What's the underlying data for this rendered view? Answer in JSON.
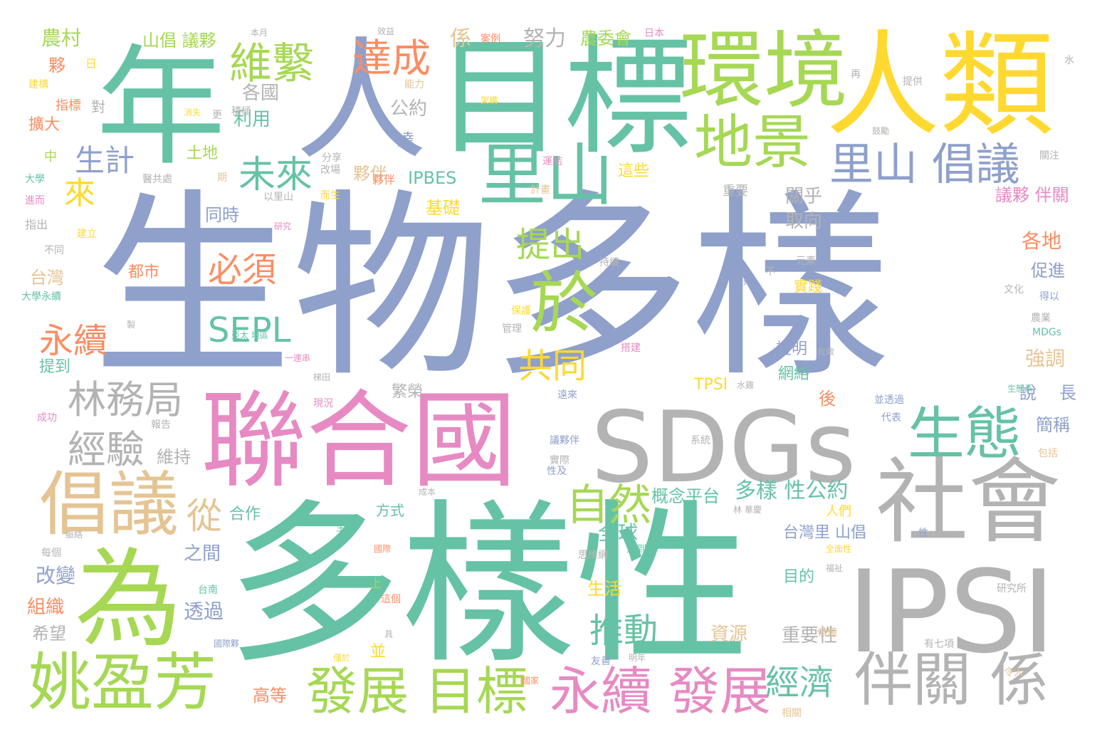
{
  "word_cloud": {
    "palette": {
      "blue": "#8fa0cb",
      "teal": "#66c2a5",
      "lime": "#a6d854",
      "yellow": "#ffd92f",
      "pink": "#e78ac3",
      "gray": "#b3b3b3",
      "orange": "#fc8d62",
      "tan": "#e5c494"
    },
    "words": [
      {
        "text": "生物多樣",
        "color": "#8fa0cb"
      },
      {
        "text": "多樣性",
        "color": "#66c2a5"
      },
      {
        "text": "目標",
        "color": "#66c2a5"
      },
      {
        "text": "人",
        "color": "#8fa0cb"
      },
      {
        "text": "年",
        "color": "#66c2a5"
      },
      {
        "text": "人類",
        "color": "#ffd92f"
      },
      {
        "text": "環境",
        "color": "#a6d854"
      },
      {
        "text": "聯合國",
        "color": "#e78ac3"
      },
      {
        "text": "SDGs",
        "color": "#b3b3b3"
      },
      {
        "text": "IPSI",
        "color": "#b3b3b3"
      },
      {
        "text": "社會",
        "color": "#b3b3b3"
      },
      {
        "text": "為",
        "color": "#a6d854"
      },
      {
        "text": "里山",
        "color": "#66c2a5"
      },
      {
        "text": "地景",
        "color": "#a6d854"
      },
      {
        "text": "里山 倡議",
        "color": "#8fa0cb"
      },
      {
        "text": "生態",
        "color": "#66c2a5"
      },
      {
        "text": "倡議",
        "color": "#e5c494"
      },
      {
        "text": "姚盈芳",
        "color": "#a6d854"
      },
      {
        "text": "伴關 係",
        "color": "#b3b3b3"
      },
      {
        "text": "發展 目標",
        "color": "#a6d854"
      },
      {
        "text": "永續 發展",
        "color": "#e78ac3"
      },
      {
        "text": "林務局",
        "color": "#b3b3b3"
      },
      {
        "text": "經驗",
        "color": "#b3b3b3"
      },
      {
        "text": "維繫",
        "color": "#a6d854"
      },
      {
        "text": "達成",
        "color": "#fc8d62"
      },
      {
        "text": "生計",
        "color": "#8fa0cb"
      },
      {
        "text": "未來",
        "color": "#66c2a5"
      },
      {
        "text": "來",
        "color": "#ffd92f"
      },
      {
        "text": "於",
        "color": "#a6d854"
      },
      {
        "text": "提出",
        "color": "#a6d854"
      },
      {
        "text": "必須",
        "color": "#fc8d62"
      },
      {
        "text": "SEPL",
        "color": "#66c2a5"
      },
      {
        "text": "永續",
        "color": "#fc8d62"
      },
      {
        "text": "共同",
        "color": "#ffd92f"
      },
      {
        "text": "推動",
        "color": "#66c2a5"
      },
      {
        "text": "自然",
        "color": "#a6d854"
      },
      {
        "text": "經濟",
        "color": "#66c2a5"
      },
      {
        "text": "從",
        "color": "#e5c494"
      },
      {
        "text": "努力",
        "color": "#b3b3b3"
      },
      {
        "text": "各國",
        "color": "#b3b3b3"
      },
      {
        "text": "利用",
        "color": "#66c2a5"
      },
      {
        "text": "公約",
        "color": "#b3b3b3"
      },
      {
        "text": "農村",
        "color": "#a6d854"
      },
      {
        "text": "山倡 議夥",
        "color": "#a6d854"
      },
      {
        "text": "係",
        "color": "#e5c494"
      },
      {
        "text": "農委會",
        "color": "#a6d854"
      },
      {
        "text": "IPBES",
        "color": "#66c2a5"
      },
      {
        "text": "夥伴",
        "color": "#e5c494"
      },
      {
        "text": "基礎",
        "color": "#ffd92f"
      },
      {
        "text": "關乎",
        "color": "#b3b3b3"
      },
      {
        "text": "取向",
        "color": "#b3b3b3"
      },
      {
        "text": "議夥 伴關",
        "color": "#e78ac3"
      },
      {
        "text": "各地",
        "color": "#fc8d62"
      },
      {
        "text": "促進",
        "color": "#8fa0cb"
      },
      {
        "text": "強調",
        "color": "#e5c494"
      },
      {
        "text": "說",
        "color": "#8fa0cb"
      },
      {
        "text": "長",
        "color": "#8fa0cb"
      },
      {
        "text": "簡稱",
        "color": "#8fa0cb"
      },
      {
        "text": "概念平台",
        "color": "#66c2a5"
      },
      {
        "text": "多樣 性公約",
        "color": "#66c2a5"
      },
      {
        "text": "台灣里 山倡",
        "color": "#8fa0cb"
      },
      {
        "text": "重要性",
        "color": "#b3b3b3"
      },
      {
        "text": "資源",
        "color": "#e5c494"
      },
      {
        "text": "高等",
        "color": "#fc8d62"
      },
      {
        "text": "全球",
        "color": "#66c2a5"
      },
      {
        "text": "生活",
        "color": "#ffd92f"
      },
      {
        "text": "合作",
        "color": "#66c2a5"
      },
      {
        "text": "方式",
        "color": "#66c2a5"
      },
      {
        "text": "之間",
        "color": "#8fa0cb"
      },
      {
        "text": "改變",
        "color": "#8fa0cb"
      },
      {
        "text": "組織",
        "color": "#fc8d62"
      },
      {
        "text": "透過",
        "color": "#8fa0cb"
      },
      {
        "text": "希望",
        "color": "#b3b3b3"
      },
      {
        "text": "台灣",
        "color": "#e5c494"
      },
      {
        "text": "都市",
        "color": "#fc8d62"
      },
      {
        "text": "同時",
        "color": "#8fa0cb"
      },
      {
        "text": "土地",
        "color": "#a6d854"
      },
      {
        "text": "擴大",
        "color": "#fc8d62"
      },
      {
        "text": "指標",
        "color": "#fc8d62"
      },
      {
        "text": "對",
        "color": "#b3b3b3"
      },
      {
        "text": "維持",
        "color": "#b3b3b3"
      },
      {
        "text": "繁榮",
        "color": "#b3b3b3"
      },
      {
        "text": "網絡",
        "color": "#66c2a5"
      },
      {
        "text": "證明",
        "color": "#8fa0cb"
      },
      {
        "text": "實踐",
        "color": "#ffd92f"
      },
      {
        "text": "重要",
        "color": "#b3b3b3"
      },
      {
        "text": "這些",
        "color": "#ffd92f"
      },
      {
        "text": "達",
        "color": "#8fa0cb"
      },
      {
        "text": "TPSI",
        "color": "#ffd92f"
      },
      {
        "text": "提到",
        "color": "#66c2a5"
      },
      {
        "text": "夥",
        "color": "#fc8d62"
      },
      {
        "text": "後",
        "color": "#fc8d62"
      },
      {
        "text": "目的",
        "color": "#66c2a5"
      },
      {
        "text": "大學永續",
        "color": "#66c2a5"
      },
      {
        "text": "日本",
        "color": "#e78ac3"
      },
      {
        "text": "案例",
        "color": "#fc8d62"
      },
      {
        "text": "本月",
        "color": "#b3b3b3"
      },
      {
        "text": "效益",
        "color": "#b3b3b3"
      },
      {
        "text": "能力",
        "color": "#e5c494"
      },
      {
        "text": "積極",
        "color": "#b3b3b3"
      },
      {
        "text": "消失",
        "color": "#ffd92f"
      },
      {
        "text": "架構",
        "color": "#ffd92f"
      },
      {
        "text": "提供",
        "color": "#b3b3b3"
      },
      {
        "text": "研究所",
        "color": "#b3b3b3"
      },
      {
        "text": "文化",
        "color": "#b3b3b3"
      },
      {
        "text": "農業",
        "color": "#b3b3b3"
      },
      {
        "text": "得以",
        "color": "#8fa0cb"
      },
      {
        "text": "元素",
        "color": "#b3b3b3"
      },
      {
        "text": "支持",
        "color": "#8fa0cb"
      },
      {
        "text": "持續",
        "color": "#b3b3b3"
      },
      {
        "text": "建立",
        "color": "#ffd92f"
      },
      {
        "text": "研究",
        "color": "#e78ac3"
      },
      {
        "text": "指出",
        "color": "#b3b3b3"
      },
      {
        "text": "不同",
        "color": "#b3b3b3"
      },
      {
        "text": "進而",
        "color": "#e78ac3"
      },
      {
        "text": "大學",
        "color": "#66c2a5"
      },
      {
        "text": "中",
        "color": "#a6d854"
      },
      {
        "text": "建構",
        "color": "#ffd92f"
      },
      {
        "text": "改場",
        "color": "#b3b3b3"
      },
      {
        "text": "分享",
        "color": "#b3b3b3"
      },
      {
        "text": "期",
        "color": "#e5c494"
      },
      {
        "text": "運結",
        "color": "#e78ac3"
      },
      {
        "text": "計畫",
        "color": "#e5c494"
      },
      {
        "text": "保護",
        "color": "#ffd92f"
      },
      {
        "text": "管理",
        "color": "#b3b3b3"
      },
      {
        "text": "搭建",
        "color": "#e78ac3"
      },
      {
        "text": "系統",
        "color": "#b3b3b3"
      },
      {
        "text": "實際",
        "color": "#b3b3b3"
      },
      {
        "text": "性及",
        "color": "#8fa0cb"
      },
      {
        "text": "人們",
        "color": "#ffd92f"
      },
      {
        "text": "代表",
        "color": "#8fa0cb"
      },
      {
        "text": "包括",
        "color": "#e5c494"
      },
      {
        "text": "報告",
        "color": "#b3b3b3"
      },
      {
        "text": "成功",
        "color": "#e78ac3"
      },
      {
        "text": "每個",
        "color": "#b3b3b3"
      },
      {
        "text": "脈絡",
        "color": "#b3b3b3"
      },
      {
        "text": "台南",
        "color": "#66c2a5"
      },
      {
        "text": "國際夥",
        "color": "#8fa0cb"
      },
      {
        "text": "並",
        "color": "#ffd92f"
      },
      {
        "text": "國家",
        "color": "#fc8d62"
      },
      {
        "text": "友善",
        "color": "#8fa0cb"
      },
      {
        "text": "明年",
        "color": "#b3b3b3"
      },
      {
        "text": "相關",
        "color": "#e5c494"
      },
      {
        "text": "令人",
        "color": "#e5c494"
      },
      {
        "text": "有七項",
        "color": "#b3b3b3"
      },
      {
        "text": "借鏡",
        "color": "#e5c494"
      },
      {
        "text": "性",
        "color": "#8fa0cb"
      },
      {
        "text": "全面性",
        "color": "#ffd92f"
      },
      {
        "text": "福祉",
        "color": "#b3b3b3"
      },
      {
        "text": "思維網",
        "color": "#b3b3b3"
      },
      {
        "text": "運到",
        "color": "#66c2a5"
      },
      {
        "text": "這個",
        "color": "#fc8d62"
      },
      {
        "text": "上",
        "color": "#a6d854"
      },
      {
        "text": "生產",
        "color": "#66c2a5"
      },
      {
        "text": "現況",
        "color": "#e78ac3"
      },
      {
        "text": "一連串",
        "color": "#e78ac3"
      },
      {
        "text": "梯田",
        "color": "#b3b3b3"
      },
      {
        "text": "水",
        "color": "#b3b3b3"
      },
      {
        "text": "再",
        "color": "#b3b3b3"
      },
      {
        "text": "日",
        "color": "#ffd92f"
      },
      {
        "text": "製",
        "color": "#b3b3b3"
      },
      {
        "text": "有效",
        "color": "#b3b3b3"
      },
      {
        "text": "並透過",
        "color": "#8fa0cb"
      },
      {
        "text": "水雞",
        "color": "#b3b3b3"
      },
      {
        "text": "夥伴",
        "color": "#fc8d62"
      },
      {
        "text": "遠來",
        "color": "#8fa0cb"
      },
      {
        "text": "議夥伴",
        "color": "#8fa0cb"
      },
      {
        "text": "而生",
        "color": "#ffd92f"
      },
      {
        "text": "以里山",
        "color": "#b3b3b3"
      },
      {
        "text": "醫共處",
        "color": "#b3b3b3"
      },
      {
        "text": "關注",
        "color": "#b3b3b3"
      },
      {
        "text": "鼓勵",
        "color": "#b3b3b3"
      },
      {
        "text": "更",
        "color": "#b3b3b3"
      },
      {
        "text": "不",
        "color": "#b3b3b3"
      },
      {
        "text": "MDGs",
        "color": "#66c2a5"
      },
      {
        "text": "林 華慶",
        "color": "#b3b3b3"
      },
      {
        "text": "成本",
        "color": "#b3b3b3"
      },
      {
        "text": "具",
        "color": "#b3b3b3"
      },
      {
        "text": "僅於",
        "color": "#ffd92f"
      },
      {
        "text": "國際",
        "color": "#fc8d62"
      },
      {
        "text": "生態系",
        "color": "#66c2a5"
      },
      {
        "text": "亞太 地區",
        "color": "#66c2a5"
      }
    ]
  }
}
